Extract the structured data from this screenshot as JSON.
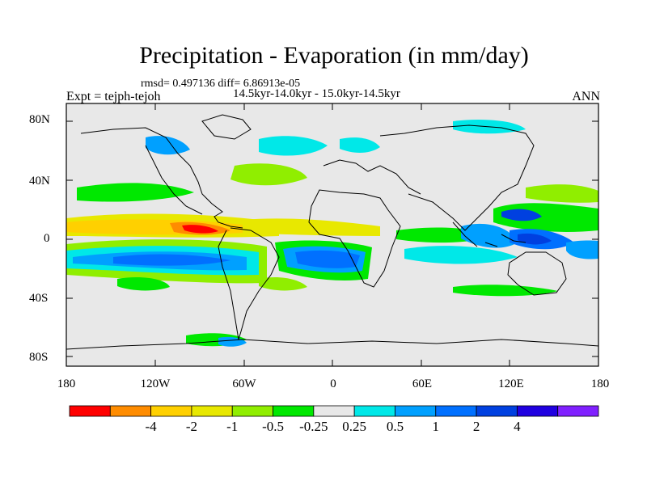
{
  "title": "Precipitation - Evaporation (in mm/day)",
  "stats": "rmsd= 0.497136 diff= 6.86913e-05",
  "period": "14.5kyr-14.0kyr - 15.0kyr-14.5kyr",
  "expt": "Expt = tejph-tejoh",
  "season": "ANN",
  "y_ticks": [
    "80N",
    "40N",
    "0",
    "40S",
    "80S"
  ],
  "x_ticks": [
    "180",
    "120W",
    "60W",
    "0",
    "60E",
    "120E",
    "180"
  ],
  "colorbar": {
    "colors": [
      "#ff0000",
      "#ff8c00",
      "#ffd000",
      "#e8e800",
      "#90ee00",
      "#00e800",
      "#e8e8e8",
      "#00e8e8",
      "#00a0ff",
      "#0070ff",
      "#0040e0",
      "#2000e0",
      "#8020ff"
    ],
    "labels": [
      "-4",
      "-2",
      "-1",
      "-0.5",
      "-0.25",
      "0.25",
      "0.5",
      "1",
      "2",
      "4"
    ]
  },
  "map_background": "#e8e8e8"
}
